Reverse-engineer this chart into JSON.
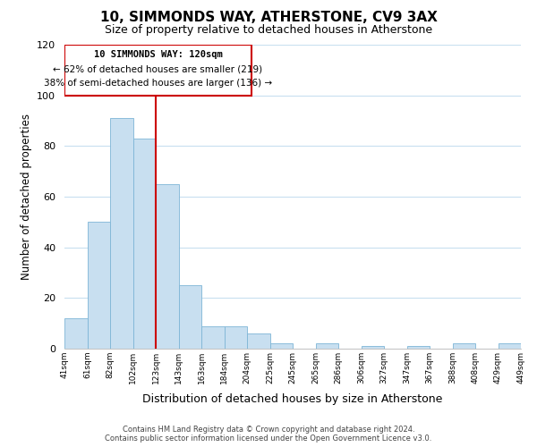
{
  "title": "10, SIMMONDS WAY, ATHERSTONE, CV9 3AX",
  "subtitle": "Size of property relative to detached houses in Atherstone",
  "xlabel": "Distribution of detached houses by size in Atherstone",
  "ylabel": "Number of detached properties",
  "bin_labels": [
    "41sqm",
    "61sqm",
    "82sqm",
    "102sqm",
    "123sqm",
    "143sqm",
    "163sqm",
    "184sqm",
    "204sqm",
    "225sqm",
    "245sqm",
    "265sqm",
    "286sqm",
    "306sqm",
    "327sqm",
    "347sqm",
    "367sqm",
    "388sqm",
    "408sqm",
    "429sqm",
    "449sqm"
  ],
  "bar_heights": [
    12,
    50,
    91,
    83,
    65,
    25,
    9,
    9,
    6,
    2,
    0,
    2,
    0,
    1,
    0,
    1,
    0,
    2,
    0,
    2
  ],
  "bar_color": "#c8dff0",
  "bar_edge_color": "#7eb5d6",
  "marker_label": "10 SIMMONDS WAY: 120sqm",
  "annotation_line1": "← 62% of detached houses are smaller (219)",
  "annotation_line2": "38% of semi-detached houses are larger (136) →",
  "marker_line_color": "#cc0000",
  "box_edge_color": "#cc0000",
  "ylim": [
    0,
    120
  ],
  "yticks": [
    0,
    20,
    40,
    60,
    80,
    100,
    120
  ],
  "footer1": "Contains HM Land Registry data © Crown copyright and database right 2024.",
  "footer2": "Contains public sector information licensed under the Open Government Licence v3.0.",
  "background_color": "#ffffff",
  "grid_color": "#c8dff0"
}
